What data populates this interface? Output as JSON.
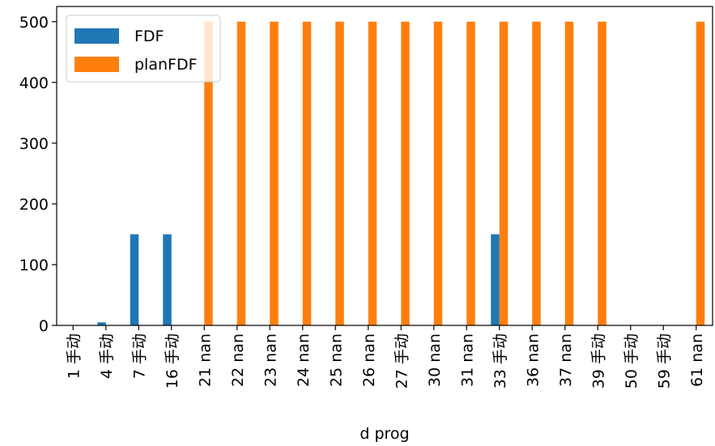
{
  "chart_data": {
    "type": "bar",
    "xlabel": "d prog",
    "ylabel": "",
    "ylim": [
      0,
      525
    ],
    "yticks": [
      0,
      100,
      200,
      300,
      400,
      500
    ],
    "categories": [
      "1 手动",
      "4 手动",
      "7 手动",
      "16 手动",
      "21 nan",
      "22 nan",
      "23 nan",
      "24 nan",
      "25 nan",
      "26 nan",
      "27 手动",
      "30 nan",
      "31 nan",
      "33 手动",
      "36 nan",
      "37 nan",
      "39 手动",
      "50 手动",
      "59 手动",
      "61 nan"
    ],
    "series": [
      {
        "name": "FDF",
        "color": "#1f77b4",
        "values": [
          0,
          5,
          150,
          150,
          0,
          0,
          0,
          0,
          0,
          0,
          0,
          0,
          0,
          150,
          0,
          0,
          0,
          0,
          0,
          0
        ]
      },
      {
        "name": "planFDF",
        "color": "#ff7f0e",
        "values": [
          0,
          0,
          0,
          0,
          500,
          500,
          500,
          500,
          500,
          500,
          500,
          500,
          500,
          500,
          500,
          500,
          500,
          0,
          0,
          500
        ]
      }
    ],
    "grid": false,
    "legend": "top-left"
  }
}
